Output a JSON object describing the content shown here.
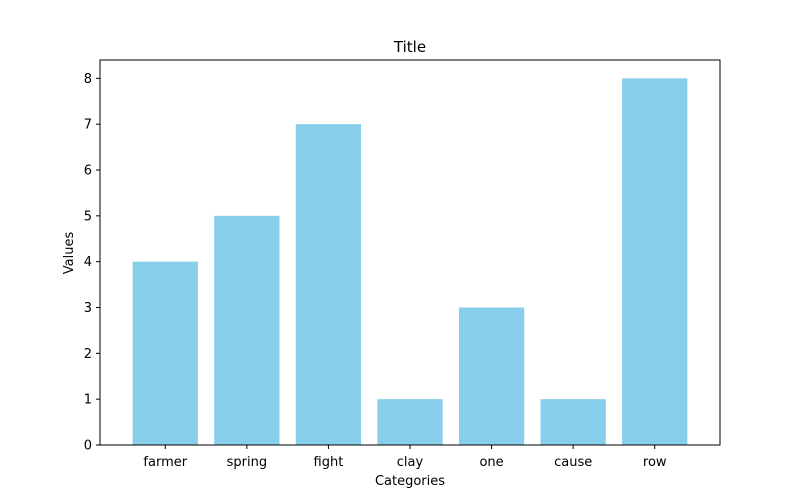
{
  "chart_data": {
    "type": "bar",
    "title": "Title",
    "xlabel": "Categories",
    "ylabel": "Values",
    "categories": [
      "farmer",
      "spring",
      "fight",
      "clay",
      "one",
      "cause",
      "row"
    ],
    "values": [
      4,
      5,
      7,
      1,
      3,
      1,
      8
    ],
    "ylim": [
      0,
      8.4
    ],
    "yticks": [
      0,
      1,
      2,
      3,
      4,
      5,
      6,
      7,
      8
    ],
    "grid": false,
    "legend": "none",
    "colors": {
      "bar": "#87CEEB",
      "axis": "#000000",
      "background": "#ffffff"
    }
  }
}
